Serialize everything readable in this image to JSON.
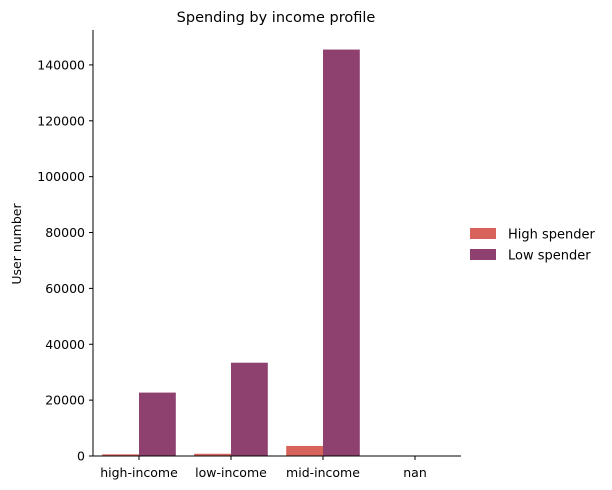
{
  "chart_data": {
    "type": "bar",
    "title": "Spending by income profile",
    "xlabel": "",
    "ylabel": "User number",
    "categories": [
      "high-income",
      "low-income",
      "mid-income",
      "nan"
    ],
    "series": [
      {
        "name": "High spender",
        "color": "#d8635c",
        "values": [
          600,
          800,
          3600,
          0
        ]
      },
      {
        "name": "Low spender",
        "color": "#8e416e",
        "values": [
          22700,
          33400,
          145500,
          0
        ]
      }
    ],
    "ylim": [
      0,
      152500
    ],
    "yticks": [
      0,
      20000,
      40000,
      60000,
      80000,
      100000,
      120000,
      140000
    ],
    "grid": false,
    "legend": "right"
  }
}
